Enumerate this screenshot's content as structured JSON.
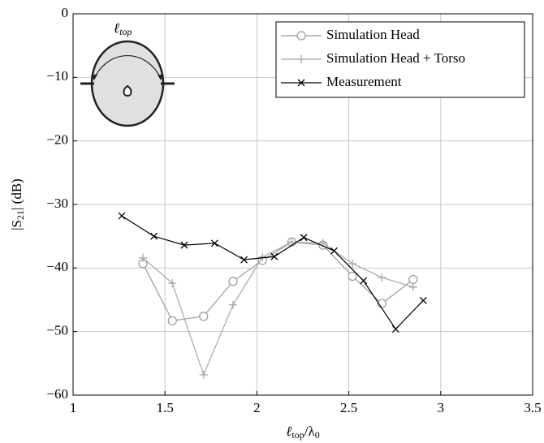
{
  "chart_data": {
    "type": "line",
    "inset_label": [
      "ℓ",
      "top"
    ],
    "x_label": [
      "ℓ",
      "top",
      "/λ",
      "0"
    ],
    "y_label": [
      "|S",
      "21",
      "| (dB)"
    ],
    "xlim": [
      1,
      3.5
    ],
    "ylim": [
      -60,
      0
    ],
    "xticks": [
      1,
      1.5,
      2,
      2.5,
      3,
      3.5
    ],
    "yticks": [
      {
        "value": -60,
        "label": "−60"
      },
      {
        "value": -50,
        "label": "−50"
      },
      {
        "value": -40,
        "label": "−40"
      },
      {
        "value": -30,
        "label": "−30"
      },
      {
        "value": -20,
        "label": "−20"
      },
      {
        "value": -10,
        "label": "−10"
      },
      0
    ],
    "grid": true,
    "legend": "upper right",
    "series": [
      {
        "name": "Simulation Head",
        "color": "#9a9a9a",
        "marker": "circle",
        "x": [
          1.38,
          1.54,
          1.71,
          1.87,
          2.03,
          2.19,
          2.36,
          2.52,
          2.68,
          2.85
        ],
        "values": [
          -39.3,
          -48.3,
          -47.6,
          -42.1,
          -38.8,
          -35.9,
          -36.4,
          -41.3,
          -45.6,
          -41.8
        ]
      },
      {
        "name": "Simulation Head + Torso",
        "color": "#a8a8a8",
        "marker": "plus",
        "x": [
          1.38,
          1.54,
          1.71,
          1.87,
          2.03,
          2.19,
          2.36,
          2.52,
          2.68,
          2.85
        ],
        "values": [
          -38.4,
          -42.4,
          -56.8,
          -45.8,
          -38.3,
          -35.9,
          -36.1,
          -39.3,
          -41.5,
          -43.0
        ]
      },
      {
        "name": "Measurement",
        "color": "#000000",
        "marker": "cross",
        "x": [
          1.265,
          1.44,
          1.605,
          1.77,
          1.93,
          2.095,
          2.255,
          2.42,
          2.58,
          2.755,
          2.905
        ],
        "values": [
          -31.8,
          -35.0,
          -36.4,
          -36.1,
          -38.7,
          -38.2,
          -35.2,
          -37.3,
          -42.0,
          -49.6,
          -45.1
        ]
      }
    ]
  }
}
